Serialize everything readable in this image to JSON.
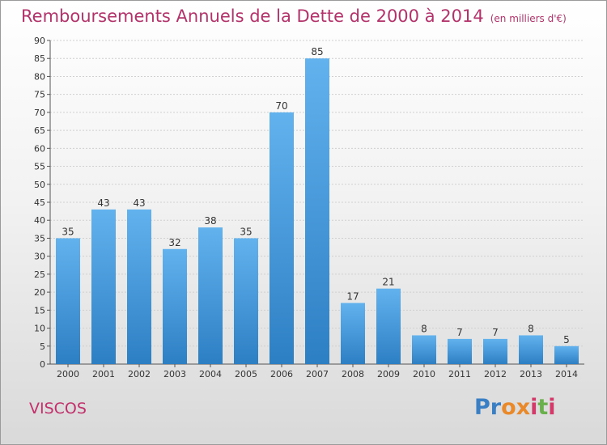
{
  "header": {
    "title": "Remboursements Annuels de la Dette de 2000 à 2014",
    "unit": "(en milliers d'€)"
  },
  "location": "VISCOS",
  "logo": {
    "text": "Proxiti",
    "colors": [
      "#3a7fc4",
      "#e8892b",
      "#d23a6a",
      "#6ab04c"
    ]
  },
  "chart_data": {
    "type": "bar",
    "title": "Remboursements Annuels de la Dette de 2000 à 2014",
    "categories": [
      "2000",
      "2001",
      "2002",
      "2003",
      "2004",
      "2005",
      "2006",
      "2007",
      "2008",
      "2009",
      "2010",
      "2011",
      "2012",
      "2013",
      "2014"
    ],
    "values": [
      35,
      43,
      43,
      32,
      38,
      35,
      70,
      85,
      17,
      21,
      8,
      7,
      7,
      8,
      5
    ],
    "ylim": [
      0,
      90
    ],
    "yticks": [
      0,
      5,
      10,
      15,
      20,
      25,
      30,
      35,
      40,
      45,
      50,
      55,
      60,
      65,
      70,
      75,
      80,
      85,
      90
    ],
    "grid": true,
    "bar_color": "#4a9fe0",
    "legend": "none"
  }
}
